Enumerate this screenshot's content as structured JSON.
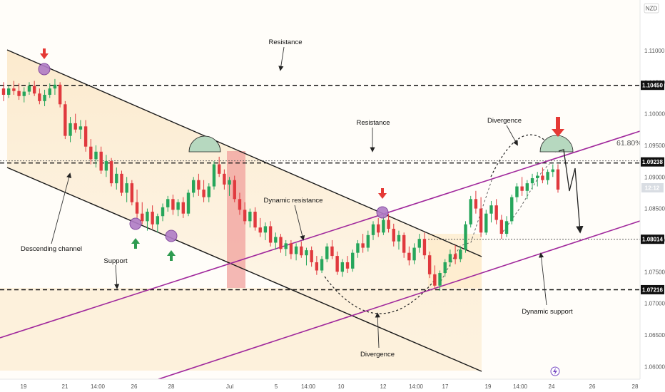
{
  "chart_data": {
    "type": "candlestick",
    "currency": "NZD",
    "ylim": [
      1.058,
      1.118
    ],
    "y_ticks": [
      "1.11000",
      "1.10500",
      "1.10000",
      "1.09500",
      "1.09000",
      "1.08500",
      "1.08000",
      "1.07500",
      "1.07000",
      "1.06500",
      "1.06000"
    ],
    "x_ticks": [
      "19",
      "21",
      "14:00",
      "26",
      "28",
      "Jul",
      "5",
      "14:00",
      "10",
      "12",
      "14:00",
      "17",
      "19",
      "14:00",
      "24",
      "26",
      "28"
    ],
    "price_badges": [
      {
        "label": "1.10450",
        "value": 1.1045
      },
      {
        "label": "1.09238",
        "value": 1.09238
      },
      {
        "label": "1.08014",
        "value": 1.08014
      },
      {
        "label": "1.07216",
        "value": 1.07216
      }
    ],
    "current_price_label": "12:12",
    "fib_label": "61.80%",
    "annotations": [
      "Resistance",
      "Resistance",
      "Divergence",
      "Dynamic resistance",
      "Descending channel",
      "Support",
      "Divergence",
      "Dynamic support"
    ],
    "ohlc": [
      [
        1.104,
        1.105,
        1.102,
        1.103
      ],
      [
        1.103,
        1.1045,
        1.1025,
        1.104
      ],
      [
        1.104,
        1.1052,
        1.103,
        1.1036
      ],
      [
        1.1036,
        1.1048,
        1.1022,
        1.1028
      ],
      [
        1.1028,
        1.1042,
        1.1018,
        1.1035
      ],
      [
        1.1035,
        1.105,
        1.103,
        1.1044
      ],
      [
        1.1044,
        1.1052,
        1.1028,
        1.1032
      ],
      [
        1.1032,
        1.104,
        1.1015,
        1.102
      ],
      [
        1.102,
        1.1038,
        1.1012,
        1.103
      ],
      [
        1.103,
        1.1048,
        1.1025,
        1.104
      ],
      [
        1.104,
        1.1055,
        1.103,
        1.1046
      ],
      [
        1.1046,
        1.105,
        1.101,
        1.1015
      ],
      [
        1.1015,
        1.102,
        1.096,
        1.0965
      ],
      [
        1.0965,
        1.0995,
        1.0955,
        1.0985
      ],
      [
        1.0985,
        1.1,
        1.097,
        1.0975
      ],
      [
        1.0975,
        1.099,
        1.096,
        1.098
      ],
      [
        1.098,
        1.099,
        1.094,
        1.0948
      ],
      [
        1.0948,
        1.096,
        1.092,
        1.0928
      ],
      [
        1.0928,
        1.095,
        1.0915,
        1.094
      ],
      [
        1.094,
        1.0948,
        1.0905,
        1.091
      ],
      [
        1.091,
        1.0935,
        1.09,
        1.0925
      ],
      [
        1.0925,
        1.093,
        1.0885,
        1.089
      ],
      [
        1.089,
        1.0915,
        1.088,
        1.0905
      ],
      [
        1.0905,
        1.091,
        1.087,
        1.0875
      ],
      [
        1.0875,
        1.09,
        1.086,
        1.089
      ],
      [
        1.089,
        1.0895,
        1.0855,
        1.086
      ],
      [
        1.086,
        1.088,
        1.0835,
        1.0842
      ],
      [
        1.0842,
        1.086,
        1.0825,
        1.083
      ],
      [
        1.083,
        1.085,
        1.0815,
        1.0845
      ],
      [
        1.0845,
        1.0855,
        1.0818,
        1.0825
      ],
      [
        1.0825,
        1.0842,
        1.0812,
        1.0838
      ],
      [
        1.0838,
        1.0858,
        1.083,
        1.0852
      ],
      [
        1.0852,
        1.087,
        1.0845,
        1.0865
      ],
      [
        1.0865,
        1.0872,
        1.084,
        1.0848
      ],
      [
        1.0848,
        1.0865,
        1.0838,
        1.086
      ],
      [
        1.086,
        1.0868,
        1.0835,
        1.0842
      ],
      [
        1.0842,
        1.088,
        1.0838,
        1.0875
      ],
      [
        1.0875,
        1.09,
        1.0868,
        1.0895
      ],
      [
        1.0895,
        1.0905,
        1.087,
        1.088
      ],
      [
        1.088,
        1.0895,
        1.086,
        1.0868
      ],
      [
        1.0868,
        1.089,
        1.086,
        1.0885
      ],
      [
        1.0885,
        1.0925,
        1.088,
        1.092
      ],
      [
        1.092,
        1.0932,
        1.09,
        1.0905
      ],
      [
        1.0905,
        1.0912,
        1.088,
        1.0888
      ],
      [
        1.0888,
        1.09,
        1.087,
        1.0895
      ],
      [
        1.0895,
        1.0902,
        1.086,
        1.0865
      ],
      [
        1.0865,
        1.0875,
        1.084,
        1.0848
      ],
      [
        1.0848,
        1.086,
        1.0825,
        1.083
      ],
      [
        1.083,
        1.085,
        1.082,
        1.0845
      ],
      [
        1.0845,
        1.0852,
        1.0815,
        1.082
      ],
      [
        1.082,
        1.0835,
        1.0805,
        1.0812
      ],
      [
        1.0812,
        1.0828,
        1.08,
        1.0822
      ],
      [
        1.0822,
        1.083,
        1.079,
        1.0796
      ],
      [
        1.0796,
        1.0812,
        1.0785,
        1.0805
      ],
      [
        1.0805,
        1.081,
        1.078,
        1.0786
      ],
      [
        1.0786,
        1.08,
        1.0775,
        1.0795
      ],
      [
        1.0795,
        1.08,
        1.077,
        1.0778
      ],
      [
        1.0778,
        1.0795,
        1.0768,
        1.079
      ],
      [
        1.079,
        1.0798,
        1.0772,
        1.0776
      ],
      [
        1.0776,
        1.0788,
        1.076,
        1.0784
      ],
      [
        1.0784,
        1.079,
        1.0758,
        1.0765
      ],
      [
        1.0765,
        1.0775,
        1.0745,
        1.0752
      ],
      [
        1.0752,
        1.0775,
        1.0748,
        1.077
      ],
      [
        1.077,
        1.0795,
        1.0765,
        1.079
      ],
      [
        1.079,
        1.08,
        1.077,
        1.0775
      ],
      [
        1.0775,
        1.0782,
        1.0745,
        1.075
      ],
      [
        1.075,
        1.077,
        1.0742,
        1.0765
      ],
      [
        1.0765,
        1.0775,
        1.0748,
        1.0755
      ],
      [
        1.0755,
        1.0785,
        1.075,
        1.078
      ],
      [
        1.078,
        1.08,
        1.0772,
        1.0795
      ],
      [
        1.0795,
        1.081,
        1.078,
        1.0788
      ],
      [
        1.0788,
        1.0815,
        1.0782,
        1.0808
      ],
      [
        1.0808,
        1.083,
        1.08,
        1.0825
      ],
      [
        1.0825,
        1.0835,
        1.0805,
        1.0812
      ],
      [
        1.0812,
        1.084,
        1.0808,
        1.0832
      ],
      [
        1.0832,
        1.0842,
        1.0812,
        1.0818
      ],
      [
        1.0818,
        1.0826,
        1.079,
        1.0798
      ],
      [
        1.0798,
        1.0815,
        1.0785,
        1.0808
      ],
      [
        1.0808,
        1.0812,
        1.0772,
        1.078
      ],
      [
        1.078,
        1.079,
        1.076,
        1.0768
      ],
      [
        1.0768,
        1.0795,
        1.0762,
        1.0788
      ],
      [
        1.0788,
        1.081,
        1.078,
        1.0802
      ],
      [
        1.0802,
        1.0812,
        1.077,
        1.0776
      ],
      [
        1.0776,
        1.0782,
        1.074,
        1.0746
      ],
      [
        1.0746,
        1.076,
        1.0722,
        1.0728
      ],
      [
        1.0728,
        1.0752,
        1.072,
        1.0748
      ],
      [
        1.0748,
        1.077,
        1.0742,
        1.0765
      ],
      [
        1.0765,
        1.0785,
        1.0758,
        1.0778
      ],
      [
        1.0778,
        1.0792,
        1.0762,
        1.077
      ],
      [
        1.077,
        1.079,
        1.0765,
        1.0785
      ],
      [
        1.0785,
        1.083,
        1.078,
        1.0825
      ],
      [
        1.0825,
        1.087,
        1.082,
        1.0865
      ],
      [
        1.0865,
        1.0878,
        1.0842,
        1.085
      ],
      [
        1.085,
        1.0868,
        1.0805,
        1.0812
      ],
      [
        1.0812,
        1.0848,
        1.0808,
        1.0842
      ],
      [
        1.0842,
        1.0862,
        1.0828,
        1.0855
      ],
      [
        1.0855,
        1.0865,
        1.0825,
        1.0832
      ],
      [
        1.0832,
        1.084,
        1.0802,
        1.081
      ],
      [
        1.081,
        1.0838,
        1.0805,
        1.083
      ],
      [
        1.083,
        1.0872,
        1.0825,
        1.0868
      ],
      [
        1.0868,
        1.089,
        1.086,
        1.0885
      ],
      [
        1.0885,
        1.09,
        1.087,
        1.0878
      ],
      [
        1.0878,
        1.0895,
        1.0865,
        1.089
      ],
      [
        1.089,
        1.0905,
        1.088,
        1.0898
      ],
      [
        1.0898,
        1.0908,
        1.0885,
        1.0902
      ],
      [
        1.0902,
        1.0915,
        1.089,
        1.0895
      ],
      [
        1.0895,
        1.0912,
        1.0888,
        1.0908
      ],
      [
        1.0908,
        1.092,
        1.09,
        1.0912
      ],
      [
        1.0912,
        1.092,
        1.0875,
        1.088
      ]
    ]
  }
}
